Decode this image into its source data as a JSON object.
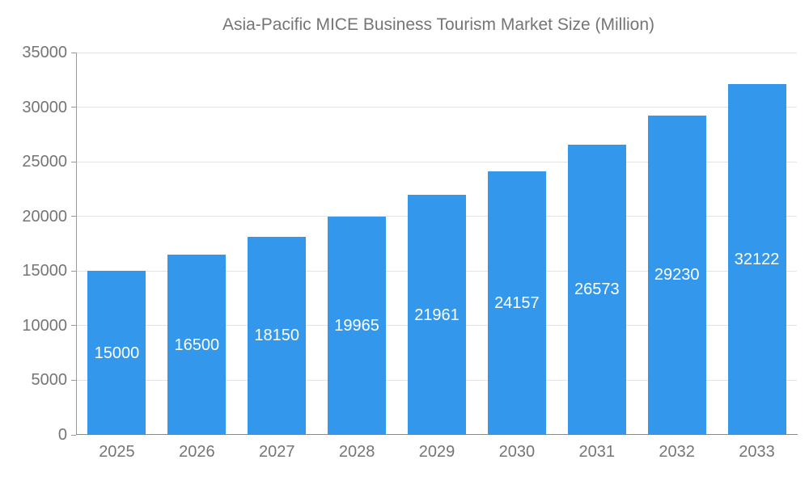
{
  "legend": {
    "label": "Asia-Pacific MICE Business Tourism Market Size (Million)"
  },
  "colors": {
    "bar": "#3398ec",
    "tick_text": "#757575",
    "grid": "#e3e3e3",
    "axis": "#9a9a9a",
    "value_text": "#ffffff"
  },
  "chart_data": {
    "type": "bar",
    "title": "Asia-Pacific MICE Business Tourism Market Size (Million)",
    "categories": [
      "2025",
      "2026",
      "2027",
      "2028",
      "2029",
      "2030",
      "2031",
      "2032",
      "2033"
    ],
    "values": [
      15000,
      16500,
      18150,
      19965,
      21961,
      24157,
      26573,
      29230,
      32122
    ],
    "xlabel": "",
    "ylabel": "",
    "ylim": [
      0,
      35000
    ],
    "ytick_step": 5000,
    "yticks": [
      0,
      5000,
      10000,
      15000,
      20000,
      25000,
      30000,
      35000
    ],
    "grid": true,
    "legend_position": "top",
    "value_labels": "inside-center-white"
  }
}
